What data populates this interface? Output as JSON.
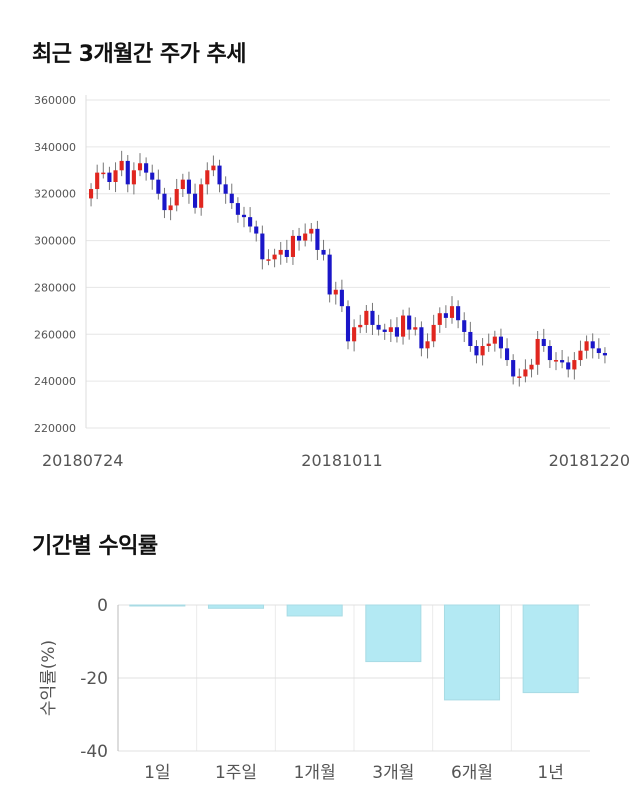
{
  "sections": {
    "stock_title": "최근 3개월간 주가 추세",
    "returns_title": "기간별 수익률"
  },
  "chart_data": [
    {
      "type": "candlestick",
      "title": "최근 3개월간 주가 추세",
      "ylim": [
        220000,
        360000
      ],
      "y_ticks": [
        220000,
        240000,
        260000,
        280000,
        300000,
        320000,
        340000,
        360000
      ],
      "x_tick_labels": [
        "20180724",
        "20181011",
        "20181220"
      ],
      "grid": true,
      "colors": {
        "up": "#e0261f",
        "down": "#1a16c8",
        "wick": "#777777"
      },
      "closes": [
        322000,
        329000,
        329000,
        325000,
        330000,
        334000,
        324000,
        330000,
        333000,
        329000,
        326000,
        320000,
        313000,
        315000,
        322000,
        326000,
        320000,
        314000,
        324000,
        330000,
        332000,
        324000,
        320000,
        316000,
        311000,
        310000,
        306000,
        303000,
        292000,
        292000,
        294000,
        296000,
        293000,
        302000,
        300000,
        303000,
        305000,
        296000,
        294000,
        277000,
        279000,
        272000,
        257000,
        263000,
        264000,
        270000,
        264000,
        262000,
        261000,
        263000,
        259000,
        268000,
        262000,
        263000,
        254000,
        257000,
        264000,
        269000,
        267000,
        272000,
        266000,
        261000,
        255000,
        251000,
        255000,
        256000,
        259000,
        254000,
        249000,
        242000,
        242000,
        245000,
        247000,
        258000,
        255000,
        249000,
        249000,
        248000,
        245000,
        249000,
        253000,
        257000,
        254000,
        252000,
        251000
      ]
    },
    {
      "type": "bar",
      "title": "기간별 수익률",
      "ylabel": "수익률(%)",
      "categories": [
        "1일",
        "1주일",
        "1개월",
        "3개월",
        "6개월",
        "1년"
      ],
      "values": [
        -0.2,
        -0.9,
        -3.0,
        -15.5,
        -26.0,
        -24.0
      ],
      "ylim": [
        -40,
        0
      ],
      "y_ticks": [
        0,
        -20,
        -40
      ],
      "grid": true,
      "bar_color": "#b3e9f3"
    }
  ]
}
